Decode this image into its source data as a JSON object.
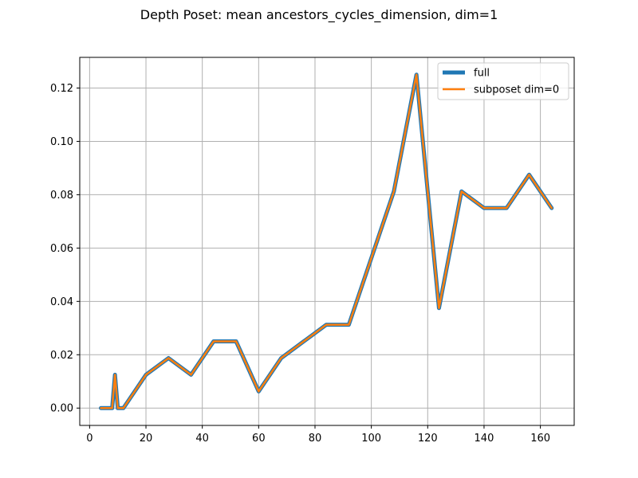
{
  "chart_data": {
    "type": "line",
    "title": "Depth Poset: mean ancestors_cycles_dimension, dim=1",
    "xlabel": "",
    "ylabel": "",
    "xlim": [
      -3.5,
      172
    ],
    "ylim": [
      -0.0065,
      0.1315
    ],
    "xticks": [
      0,
      20,
      40,
      60,
      80,
      100,
      120,
      140,
      160
    ],
    "yticks": [
      0.0,
      0.02,
      0.04,
      0.06,
      0.08,
      0.1,
      0.12
    ],
    "ytick_labels": [
      "0.00",
      "0.02",
      "0.04",
      "0.06",
      "0.08",
      "0.10",
      "0.12"
    ],
    "grid": true,
    "legend_position": "top-right",
    "x": [
      4,
      6,
      8,
      9,
      10,
      12,
      20,
      28,
      36,
      44,
      52,
      60,
      68,
      76,
      84,
      92,
      100,
      108,
      116,
      124,
      132,
      140,
      148,
      156,
      164
    ],
    "series": [
      {
        "name": "full",
        "color": "#1f77b4",
        "values": [
          0,
          0,
          0,
          0.0125,
          0,
          0,
          0.0125,
          0.01875,
          0.0125,
          0.025,
          0.025,
          0.00625,
          0.01875,
          0.025,
          0.03125,
          0.03125,
          0.05625,
          0.08125,
          0.125,
          0.0375,
          0.08125,
          0.075,
          0.075,
          0.0875,
          0.075
        ]
      },
      {
        "name": "subposet dim=0",
        "color": "#ff7f0e",
        "values": [
          0,
          0,
          0,
          0.0125,
          0,
          0,
          0.0125,
          0.01875,
          0.0125,
          0.025,
          0.025,
          0.00625,
          0.01875,
          0.025,
          0.03125,
          0.03125,
          0.05625,
          0.08125,
          0.125,
          0.0375,
          0.08125,
          0.075,
          0.075,
          0.0875,
          0.075
        ]
      }
    ]
  }
}
